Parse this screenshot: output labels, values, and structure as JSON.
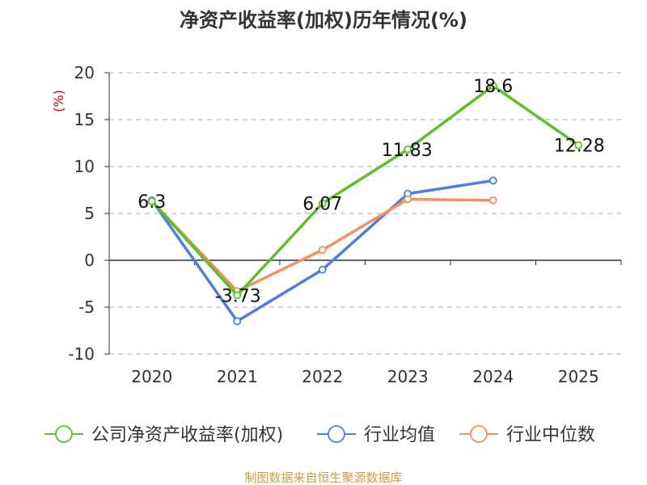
{
  "colors": {
    "company": "#5bc12a",
    "industry_avg": "#4e7fdc",
    "industry_median": "#f78f5e",
    "grid": "#c8c8c8",
    "axis": "#333333",
    "ylabel": "#cc0000",
    "source": "#c8a03c"
  },
  "source_note": "制图数据来自恒生聚源数据库",
  "chart_data": {
    "type": "line",
    "title": "净资产收益率(加权)历年情况(%)",
    "xlabel": "",
    "ylabel": "(%)",
    "categories": [
      "2020",
      "2021",
      "2022",
      "2023",
      "2024",
      "2025"
    ],
    "ylim": [
      -10,
      20
    ],
    "yticks": [
      "20",
      "15",
      "10",
      "5",
      "0",
      "-5",
      "-10"
    ],
    "grid": true,
    "legend_position": "bottom",
    "series": [
      {
        "name": "公司净资产收益率(加权)",
        "values": [
          6.3,
          -3.73,
          6.07,
          11.83,
          18.6,
          12.28
        ],
        "labels": [
          "6.3",
          "-3.73",
          "6.07",
          "11.83",
          "18.6",
          "12.28"
        ]
      },
      {
        "name": "行业均值",
        "values": [
          6.4,
          -6.5,
          -1.0,
          7.1,
          8.5,
          null
        ]
      },
      {
        "name": "行业中位数",
        "values": [
          6.3,
          -3.3,
          1.1,
          6.5,
          6.4,
          null
        ]
      }
    ]
  }
}
